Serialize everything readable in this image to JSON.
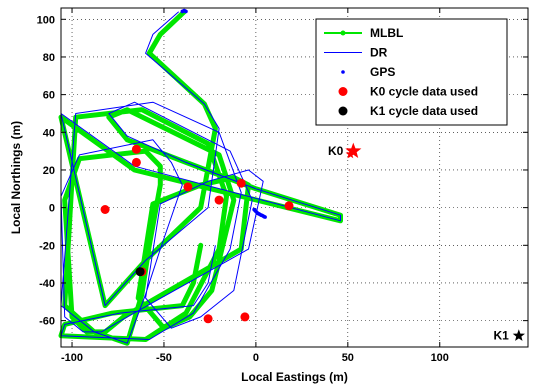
{
  "chart_data": {
    "type": "scatter",
    "title": "",
    "xlabel": "Local Eastings (m)",
    "ylabel": "Local Northings (m)",
    "xlim": [
      -106,
      148
    ],
    "ylim": [
      -74,
      106
    ],
    "xticks": [
      -100,
      -50,
      0,
      50,
      100
    ],
    "yticks": [
      -60,
      -40,
      -20,
      0,
      20,
      40,
      60,
      80,
      100
    ],
    "grid": true,
    "grid_style": "dotted",
    "legend_position": "top-right",
    "series": [
      {
        "name": "MLBL",
        "type": "line",
        "color": "#00e600",
        "marker": "dot",
        "x": [
          -39,
          -52,
          -58,
          -28,
          -22,
          -30,
          -60,
          -82,
          -106,
          -66,
          46,
          46,
          0,
          -38,
          -70,
          -80,
          -70,
          -20,
          -12,
          -24,
          -36,
          -50,
          -64,
          -56,
          -30,
          -12,
          -4,
          -8,
          -72,
          -82,
          -92,
          -100,
          -104,
          -96,
          -60,
          -52,
          -52,
          -58,
          -62,
          -70,
          -88,
          -104,
          -98,
          -62,
          -26,
          -16,
          -20,
          -38,
          -60,
          -106,
          -104,
          -78,
          -40,
          -34,
          -30
        ],
        "y": [
          104,
          92,
          82,
          55,
          42,
          0,
          -28,
          -52,
          48,
          20,
          -7,
          -4,
          10,
          24,
          36,
          48,
          52,
          28,
          4,
          -44,
          -58,
          -64,
          -48,
          2,
          12,
          16,
          12,
          -22,
          -58,
          -66,
          -66,
          -58,
          4,
          26,
          30,
          22,
          12,
          -20,
          -46,
          -72,
          -66,
          -52,
          48,
          52,
          34,
          6,
          -22,
          -56,
          -70,
          -68,
          -62,
          -56,
          -52,
          -40,
          -20
        ]
      },
      {
        "name": "DR",
        "type": "line",
        "color": "#0000ff",
        "x": [
          -42,
          -56,
          -60,
          -28,
          -20,
          -26,
          -60,
          -82,
          -106,
          -66,
          46,
          46,
          0,
          -38,
          -70,
          -80,
          -66,
          -14,
          -2,
          -12,
          -30,
          -46,
          -60,
          -52,
          -26,
          -4,
          4,
          -4,
          -70,
          -84,
          -94,
          -104,
          -106,
          -96,
          -56,
          -46,
          -40,
          -52,
          -60,
          -70,
          -88,
          -106,
          -98,
          -56,
          -20,
          -8,
          -14,
          -34,
          -58,
          -106,
          -104,
          -74,
          -34,
          -26,
          -22
        ],
        "y": [
          104,
          92,
          82,
          55,
          42,
          0,
          -28,
          -52,
          50,
          22,
          -7,
          -4,
          10,
          24,
          38,
          50,
          56,
          30,
          4,
          -44,
          -58,
          -64,
          -48,
          2,
          14,
          20,
          14,
          -22,
          -58,
          -66,
          -66,
          -58,
          6,
          28,
          36,
          24,
          12,
          -22,
          -46,
          -72,
          -66,
          -52,
          50,
          56,
          40,
          8,
          -22,
          -56,
          -70,
          -68,
          -62,
          -56,
          -52,
          -40,
          -20
        ]
      },
      {
        "name": "GPS",
        "type": "scatter",
        "color": "#0000ff",
        "marker": "dot",
        "x": [
          -40,
          -39.5,
          -39,
          -38.5,
          -38,
          -1,
          -0.5,
          0,
          0.5,
          1,
          1.5,
          2,
          2.5,
          3,
          3.5,
          4,
          4.5,
          5
        ],
        "y": [
          104.2,
          104.4,
          104.6,
          104.4,
          104.2,
          -1,
          -1.5,
          -2,
          -2.5,
          -3,
          -3.2,
          -3.5,
          -3.8,
          -4,
          -4.2,
          -4.5,
          -4.8,
          -5
        ]
      },
      {
        "name": "K0 cycle data used",
        "type": "scatter",
        "color": "#ff0000",
        "marker": "circle",
        "x": [
          -65,
          -65,
          -37,
          -8,
          -20,
          18,
          -82,
          -62,
          -26,
          -6
        ],
        "y": [
          31,
          24,
          11,
          13,
          4,
          1,
          -1,
          -34,
          -59,
          -58
        ]
      },
      {
        "name": "K1 cycle data used",
        "type": "scatter",
        "color": "#000000",
        "marker": "circle",
        "x": [
          -63
        ],
        "y": [
          -34
        ]
      }
    ],
    "annotations": [
      {
        "text": "K0",
        "x": 53,
        "y": 30,
        "marker": "star",
        "color": "#ff0000"
      },
      {
        "text": "K1",
        "x": 143,
        "y": -68,
        "marker": "star",
        "color": "#000000"
      }
    ]
  }
}
